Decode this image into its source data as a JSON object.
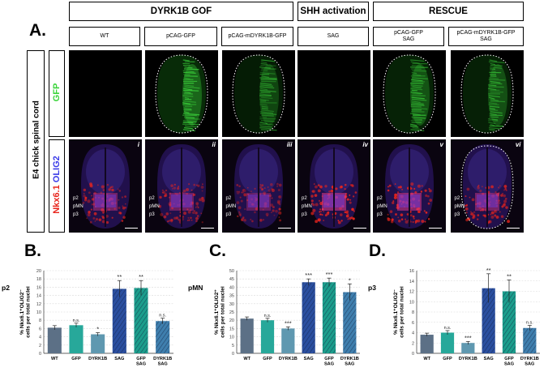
{
  "figure": {
    "panel_a_letter": "A.",
    "panel_b_letter": "B.",
    "panel_c_letter": "C.",
    "panel_d_letter": "D.",
    "side_title": "E4 chick spinal cord",
    "gfp_label": "GFP",
    "stain_label_red": "Nkx6.1",
    "stain_label_blue": "OLIG2",
    "groups": [
      {
        "label": "DYRK1B GOF"
      },
      {
        "label": "SHH activation"
      },
      {
        "label": "RESCUE"
      }
    ],
    "conditions": [
      {
        "line1": "WT",
        "line2": ""
      },
      {
        "line1": "pCAG-GFP",
        "line2": ""
      },
      {
        "line1": "pCAG-mDYRK1B-GFP",
        "line2": ""
      },
      {
        "line1": "SAG",
        "line2": ""
      },
      {
        "line1": "pCAG-GFP",
        "line2": "SAG"
      },
      {
        "line1": "pCAG-mDYRK1B-GFP",
        "line2": "SAG"
      }
    ],
    "roman": [
      "i",
      "ii",
      "iii",
      "iv",
      "v",
      "vi"
    ],
    "domain_labels": {
      "p2": "p2",
      "pMN": "pMN",
      "p3": "p3"
    },
    "colors": {
      "gfp": "#3bd43b",
      "red": "#e8241c",
      "blue": "#3a3ae8",
      "wt_bar": "#5c7086",
      "gfp_bar": "#27a89a",
      "dyrk_bar": "#5f98b0",
      "sag_bar": "#2b4fa0",
      "gfpsag_bar": "#1c9e8c",
      "dyrksag_bar": "#3f7fae"
    }
  },
  "chart_data": [
    {
      "type": "bar",
      "domain_label": "p2",
      "ylabel": "% Nkx6.1+OLIG2- cells per total nuclei",
      "ylabel_line1": "% Nkx6.1⁺OLIG2⁻",
      "ylabel_line2": "cells per total nuclei",
      "ylim": [
        0,
        20
      ],
      "yticks": [
        "0",
        "2",
        "4",
        "6",
        "8",
        "10",
        "12",
        "14",
        "16",
        "18",
        "20"
      ],
      "categories": [
        "WT",
        "GFP",
        "DYRK1B",
        "SAG",
        "GFP SAG",
        "DYRK1B SAG"
      ],
      "category_lines": [
        [
          "WT"
        ],
        [
          "GFP"
        ],
        [
          "DYRK1B"
        ],
        [
          "SAG"
        ],
        [
          "GFP",
          "SAG"
        ],
        [
          "DYRK1B",
          "SAG"
        ]
      ],
      "values": [
        6.2,
        6.8,
        4.6,
        15.6,
        15.8,
        7.8
      ],
      "errors": [
        0.5,
        0.5,
        0.4,
        2.0,
        1.8,
        0.7
      ],
      "significance": [
        "",
        "n.s.",
        "*",
        "**",
        "**",
        "n.s."
      ]
    },
    {
      "type": "bar",
      "domain_label": "pMN",
      "ylabel": "% Nkx6.1+OLIG2+ cells per total nuclei",
      "ylabel_line1": "% Nkx6.1⁺OLIG2⁺",
      "ylabel_line2": "cells per total nuclei",
      "ylim": [
        0,
        50
      ],
      "yticks": [
        "0",
        "5",
        "10",
        "15",
        "20",
        "25",
        "30",
        "35",
        "40",
        "45",
        "50"
      ],
      "categories": [
        "WT",
        "GFP",
        "DYRK1B",
        "SAG",
        "GFP SAG",
        "DYRK1B SAG"
      ],
      "category_lines": [
        [
          "WT"
        ],
        [
          "GFP"
        ],
        [
          "DYRK1B"
        ],
        [
          "SAG"
        ],
        [
          "GFP",
          "SAG"
        ],
        [
          "DYRK1B",
          "SAG"
        ]
      ],
      "values": [
        21,
        20,
        15,
        43,
        43,
        37
      ],
      "errors": [
        1.0,
        1.2,
        1.0,
        2.0,
        2.5,
        5.0
      ],
      "significance": [
        "",
        "n.s.",
        "***",
        "***",
        "***",
        "*"
      ]
    },
    {
      "type": "bar",
      "domain_label": "p3",
      "ylabel": "% Nkx6.1+OLIG2- cells per total nuclei",
      "ylabel_line1": "% Nkx6.1⁺OLIG2⁻",
      "ylabel_line2": "cells per total nuclei",
      "ylim": [
        0,
        16
      ],
      "yticks": [
        "0",
        "2",
        "4",
        "6",
        "8",
        "10",
        "12",
        "14",
        "16"
      ],
      "categories": [
        "WT",
        "GFP",
        "DYRK1B",
        "SAG",
        "GFP SAG",
        "DYRK1B SAG"
      ],
      "category_lines": [
        [
          "WT"
        ],
        [
          "GFP"
        ],
        [
          "DYRK1B"
        ],
        [
          "SAG"
        ],
        [
          "GFP",
          "SAG"
        ],
        [
          "DYRK1B",
          "SAG"
        ]
      ],
      "values": [
        3.6,
        4.0,
        2.0,
        12.6,
        12.0,
        4.9
      ],
      "errors": [
        0.3,
        0.4,
        0.3,
        2.8,
        2.2,
        0.5
      ],
      "significance": [
        "",
        "n.s.",
        "***",
        "**",
        "**",
        "n.s."
      ]
    }
  ]
}
